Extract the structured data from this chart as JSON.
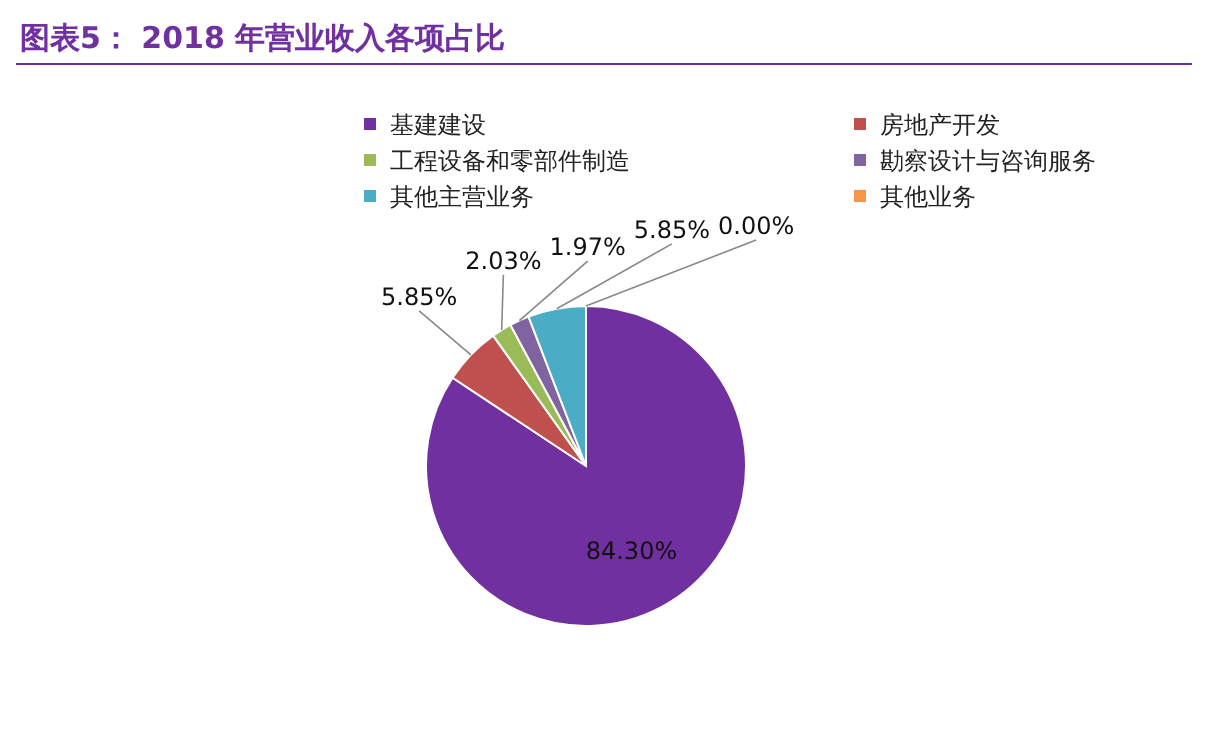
{
  "chart_data": {
    "type": "pie",
    "title": "图表5：  2018 年营业收入各项占比",
    "categories": [
      "基建建设",
      "房地产开发",
      "工程设备和零部件制造",
      "勘察设计与咨询服务",
      "其他主营业务",
      "其他业务"
    ],
    "values": [
      84.3,
      5.85,
      2.03,
      1.97,
      5.85,
      0.0
    ],
    "colors": [
      "#7030a0",
      "#c0504d",
      "#9bbb59",
      "#8064a2",
      "#4bacc6",
      "#f79646"
    ],
    "value_labels": [
      "84.30%",
      "5.85%",
      "2.03%",
      "1.97%",
      "5.85%",
      "0.00%"
    ],
    "legend": "top"
  }
}
